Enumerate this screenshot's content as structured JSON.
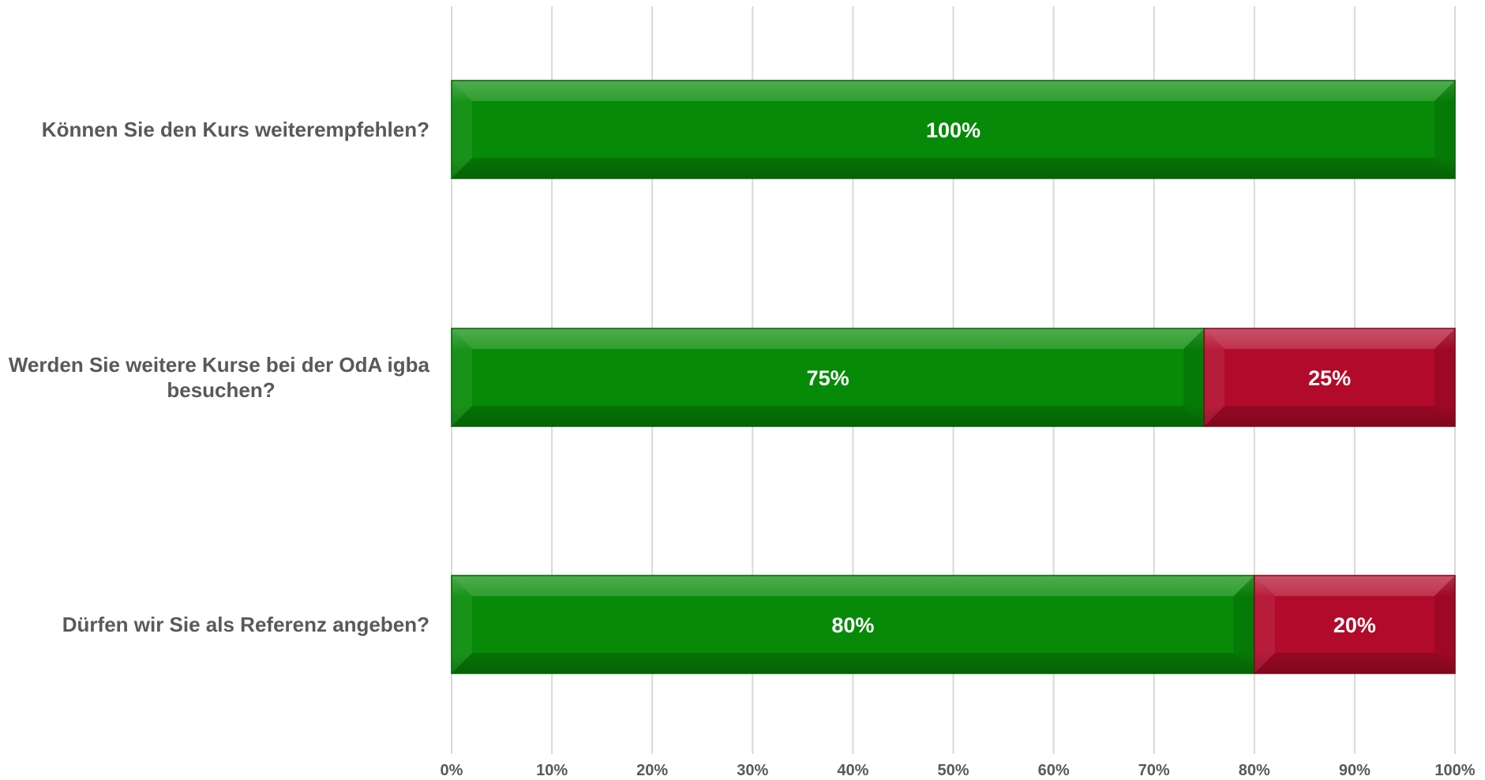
{
  "chart_data": {
    "type": "bar",
    "orientation": "horizontal",
    "stacked": "percent",
    "title": "",
    "xlabel": "",
    "ylabel": "",
    "xlim": [
      0,
      100
    ],
    "x_ticks": [
      "0%",
      "10%",
      "20%",
      "30%",
      "40%",
      "50%",
      "60%",
      "70%",
      "80%",
      "90%",
      "100%"
    ],
    "grid": "vertical",
    "legend": "none",
    "categories": [
      [
        "Können Sie den Kurs weiterempfehlen?"
      ],
      [
        "Werden Sie weitere Kurse bei der OdA igba",
        "besuchen?"
      ],
      [
        "Dürfen wir Sie als Referenz angeben?"
      ]
    ],
    "series": [
      {
        "values": [
          100,
          75,
          80
        ],
        "labels": [
          "100%",
          "75%",
          "80%"
        ],
        "color": "#078A07"
      },
      {
        "values": [
          0,
          25,
          20
        ],
        "labels": [
          "",
          "25%",
          "20%"
        ],
        "color": "#B20A2A"
      }
    ]
  }
}
